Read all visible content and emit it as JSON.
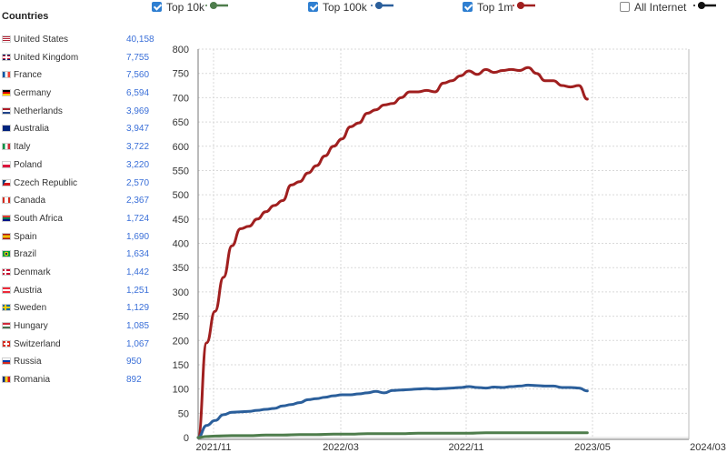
{
  "sidebar": {
    "title": "Countries",
    "countries": [
      {
        "name": "United States",
        "count": "40,158",
        "flag": "us-flag"
      },
      {
        "name": "United Kingdom",
        "count": "7,755",
        "flag": "gb-flag"
      },
      {
        "name": "France",
        "count": "7,560",
        "flag": "fr-flag"
      },
      {
        "name": "Germany",
        "count": "6,594",
        "flag": "de-flag"
      },
      {
        "name": "Netherlands",
        "count": "3,969",
        "flag": "nl-flag"
      },
      {
        "name": "Australia",
        "count": "3,947",
        "flag": "au-flag"
      },
      {
        "name": "Italy",
        "count": "3,722",
        "flag": "it-flag"
      },
      {
        "name": "Poland",
        "count": "3,220",
        "flag": "pl-flag"
      },
      {
        "name": "Czech Republic",
        "count": "2,570",
        "flag": "cz-flag"
      },
      {
        "name": "Canada",
        "count": "2,367",
        "flag": "ca-flag"
      },
      {
        "name": "South Africa",
        "count": "1,724",
        "flag": "za-flag"
      },
      {
        "name": "Spain",
        "count": "1,690",
        "flag": "es-flag"
      },
      {
        "name": "Brazil",
        "count": "1,634",
        "flag": "br-flag"
      },
      {
        "name": "Denmark",
        "count": "1,442",
        "flag": "dk-flag"
      },
      {
        "name": "Austria",
        "count": "1,251",
        "flag": "at-flag"
      },
      {
        "name": "Sweden",
        "count": "1,129",
        "flag": "se-flag"
      },
      {
        "name": "Hungary",
        "count": "1,085",
        "flag": "hu-flag"
      },
      {
        "name": "Switzerland",
        "count": "1,067",
        "flag": "ch-flag"
      },
      {
        "name": "Russia",
        "count": "950",
        "flag": "ru-flag"
      },
      {
        "name": "Romania",
        "count": "892",
        "flag": "ro-flag"
      }
    ]
  },
  "legend": [
    {
      "label": "Top 10k",
      "checked": true,
      "color": "#4e7d4c"
    },
    {
      "label": "Top 100k",
      "checked": true,
      "color": "#2b5f9b"
    },
    {
      "label": "Top 1m",
      "checked": true,
      "color": "#a01f1f"
    },
    {
      "label": "All Internet",
      "checked": false,
      "color": "#111111"
    }
  ],
  "chart_data": {
    "type": "line",
    "ylim": [
      0,
      800
    ],
    "yticks": [
      0,
      50,
      100,
      150,
      200,
      250,
      300,
      350,
      400,
      450,
      500,
      550,
      600,
      650,
      700,
      750,
      800
    ],
    "xlim": [
      "2021-10",
      "2024-03"
    ],
    "xticks": [
      "2021/11",
      "2022/03",
      "2022/11",
      "2023/05",
      "2024/03"
    ],
    "grid": true,
    "series": [
      {
        "name": "Top 1m",
        "color": "#a01f1f",
        "points": [
          [
            "2021-10",
            0
          ],
          [
            "2021-10-15",
            195
          ],
          [
            "2021-11",
            260
          ],
          [
            "2021-11-15",
            330
          ],
          [
            "2021-12",
            395
          ],
          [
            "2021-12-15",
            430
          ],
          [
            "2022-01",
            435
          ],
          [
            "2022-01-15",
            450
          ],
          [
            "2022-02",
            465
          ],
          [
            "2022-02-15",
            478
          ],
          [
            "2022-03",
            488
          ],
          [
            "2022-03-15",
            520
          ],
          [
            "2022-04",
            527
          ],
          [
            "2022-04-15",
            545
          ],
          [
            "2022-05",
            560
          ],
          [
            "2022-05-15",
            580
          ],
          [
            "2022-06",
            600
          ],
          [
            "2022-06-15",
            615
          ],
          [
            "2022-07",
            640
          ],
          [
            "2022-07-15",
            648
          ],
          [
            "2022-08",
            668
          ],
          [
            "2022-08-15",
            675
          ],
          [
            "2022-09",
            685
          ],
          [
            "2022-09-15",
            688
          ],
          [
            "2022-10",
            700
          ],
          [
            "2022-10-15",
            712
          ],
          [
            "2022-11",
            712
          ],
          [
            "2022-11-15",
            715
          ],
          [
            "2022-12",
            712
          ],
          [
            "2022-12-15",
            730
          ],
          [
            "2023-01",
            735
          ],
          [
            "2023-01-15",
            745
          ],
          [
            "2023-02",
            755
          ],
          [
            "2023-02-15",
            748
          ],
          [
            "2023-03",
            758
          ],
          [
            "2023-03-15",
            752
          ],
          [
            "2023-04",
            756
          ],
          [
            "2023-04-15",
            758
          ],
          [
            "2023-05",
            756
          ],
          [
            "2023-05-15",
            762
          ],
          [
            "2023-06",
            750
          ],
          [
            "2023-06-15",
            735
          ],
          [
            "2023-07",
            735
          ],
          [
            "2023-07-15",
            725
          ],
          [
            "2023-08",
            722
          ],
          [
            "2023-08-15",
            725
          ],
          [
            "2023-09",
            697
          ]
        ]
      },
      {
        "name": "Top 100k",
        "color": "#2b5f9b",
        "points": [
          [
            "2021-10",
            0
          ],
          [
            "2021-10-15",
            25
          ],
          [
            "2021-11",
            35
          ],
          [
            "2021-11-15",
            47
          ],
          [
            "2021-12",
            52
          ],
          [
            "2021-12-15",
            53
          ],
          [
            "2022-01",
            54
          ],
          [
            "2022-01-15",
            56
          ],
          [
            "2022-02",
            58
          ],
          [
            "2022-02-15",
            60
          ],
          [
            "2022-03",
            65
          ],
          [
            "2022-03-15",
            68
          ],
          [
            "2022-04",
            72
          ],
          [
            "2022-04-15",
            78
          ],
          [
            "2022-05",
            80
          ],
          [
            "2022-05-15",
            83
          ],
          [
            "2022-06",
            86
          ],
          [
            "2022-06-15",
            88
          ],
          [
            "2022-07",
            88
          ],
          [
            "2022-07-15",
            90
          ],
          [
            "2022-08",
            92
          ],
          [
            "2022-08-15",
            95
          ],
          [
            "2022-09",
            92
          ],
          [
            "2022-09-15",
            97
          ],
          [
            "2022-10",
            98
          ],
          [
            "2022-10-15",
            99
          ],
          [
            "2022-11",
            100
          ],
          [
            "2022-11-15",
            101
          ],
          [
            "2022-12",
            100
          ],
          [
            "2022-12-15",
            101
          ],
          [
            "2023-01",
            102
          ],
          [
            "2023-01-15",
            103
          ],
          [
            "2023-02",
            105
          ],
          [
            "2023-02-15",
            103
          ],
          [
            "2023-03",
            102
          ],
          [
            "2023-03-15",
            104
          ],
          [
            "2023-04",
            103
          ],
          [
            "2023-04-15",
            105
          ],
          [
            "2023-05",
            106
          ],
          [
            "2023-05-15",
            108
          ],
          [
            "2023-06",
            107
          ],
          [
            "2023-06-15",
            106
          ],
          [
            "2023-07",
            106
          ],
          [
            "2023-07-15",
            103
          ],
          [
            "2023-08",
            103
          ],
          [
            "2023-08-15",
            102
          ],
          [
            "2023-09",
            96
          ]
        ]
      },
      {
        "name": "Top 10k",
        "color": "#4e7d4c",
        "points": [
          [
            "2021-10",
            0
          ],
          [
            "2021-10-15",
            2
          ],
          [
            "2021-11",
            3
          ],
          [
            "2021-12",
            4
          ],
          [
            "2022-01",
            4
          ],
          [
            "2022-02",
            5
          ],
          [
            "2022-03",
            5
          ],
          [
            "2022-04",
            6
          ],
          [
            "2022-05",
            6
          ],
          [
            "2022-06",
            7
          ],
          [
            "2022-07",
            7
          ],
          [
            "2022-08",
            8
          ],
          [
            "2022-09",
            8
          ],
          [
            "2022-10",
            8
          ],
          [
            "2022-11",
            9
          ],
          [
            "2022-12",
            9
          ],
          [
            "2023-01",
            9
          ],
          [
            "2023-02",
            9
          ],
          [
            "2023-03",
            10
          ],
          [
            "2023-04",
            10
          ],
          [
            "2023-05",
            10
          ],
          [
            "2023-06",
            10
          ],
          [
            "2023-07",
            10
          ],
          [
            "2023-08",
            10
          ],
          [
            "2023-09",
            10
          ]
        ]
      }
    ]
  }
}
